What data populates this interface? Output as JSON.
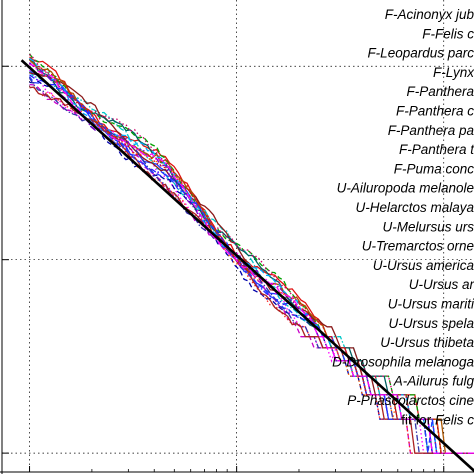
{
  "chart_data": {
    "type": "line",
    "xscale": "log",
    "yscale": "log",
    "grid": "dotted",
    "legend_position": "top-right",
    "legend": [
      {
        "label": "F-Acinonyx jub",
        "color": "#1f3cff",
        "style": "solid"
      },
      {
        "label": "F-Felis c",
        "color": "#e01010",
        "style": "solid"
      },
      {
        "label": "F-Leopardus parc",
        "color": "#00a000",
        "style": "dashed"
      },
      {
        "label": "F-Lynx",
        "color": "#ff00ff",
        "style": "dotted"
      },
      {
        "label": "F-Panthera",
        "color": "#00c8c8",
        "style": "dashdot"
      },
      {
        "label": "F-Panthera c",
        "color": "#8b1a1a",
        "style": "solid"
      },
      {
        "label": "F-Panthera pa",
        "color": "#0000aa",
        "style": "dashed"
      },
      {
        "label": "F-Panthera t",
        "color": "#ff6600",
        "style": "dotted"
      },
      {
        "label": "F-Puma conc",
        "color": "#7a00c8",
        "style": "dashdot"
      },
      {
        "label": "U-Ailuropoda melanole",
        "color": "#006060",
        "style": "solid"
      },
      {
        "label": "U-Helarctos malaya",
        "color": "#c800c8",
        "style": "dashed"
      },
      {
        "label": "U-Melursus urs",
        "color": "#ff2222",
        "style": "dotted"
      },
      {
        "label": "U-Tremarctos orne",
        "color": "#2222ff",
        "style": "dashdot"
      },
      {
        "label": "U-Ursus america",
        "color": "#aa5500",
        "style": "solid"
      },
      {
        "label": "U-Ursus ar",
        "color": "#00aaff",
        "style": "dashed"
      },
      {
        "label": "U-Ursus mariti",
        "color": "#cc0066",
        "style": "dotted"
      },
      {
        "label": "U-Ursus spela",
        "color": "#3333aa",
        "style": "dashdot"
      },
      {
        "label": "U-Ursus thibeta",
        "color": "#aa2222",
        "style": "solid"
      },
      {
        "label": "D-Drosophila melanoga",
        "color": "#1f3cff",
        "style": "dashed"
      },
      {
        "label": "A-Ailurus fulg",
        "color": "#e01010",
        "style": "dotted"
      },
      {
        "label": "P-Phascolarctos cine",
        "color": "#ff00ff",
        "style": "dashdot"
      },
      {
        "label_prefix": "fit for ",
        "label_italic": "Felis c",
        "color": "#000000",
        "style": "solid-thick"
      }
    ],
    "fit_line": {
      "x": [
        1,
        100
      ],
      "y": [
        100,
        1
      ]
    },
    "series_shape": {
      "x": [
        1,
        1.3,
        1.7,
        2.2,
        2.8,
        3.6,
        4.6,
        6,
        7.8,
        10,
        13,
        17,
        22,
        28,
        36,
        46,
        60,
        78,
        100,
        130
      ],
      "y": [
        95,
        80,
        62,
        50,
        42,
        34,
        28,
        20,
        14,
        10.5,
        8,
        6.2,
        4.8,
        3.7,
        2.9,
        2.1,
        1.7,
        1.35,
        1.08,
        1.0
      ]
    }
  }
}
